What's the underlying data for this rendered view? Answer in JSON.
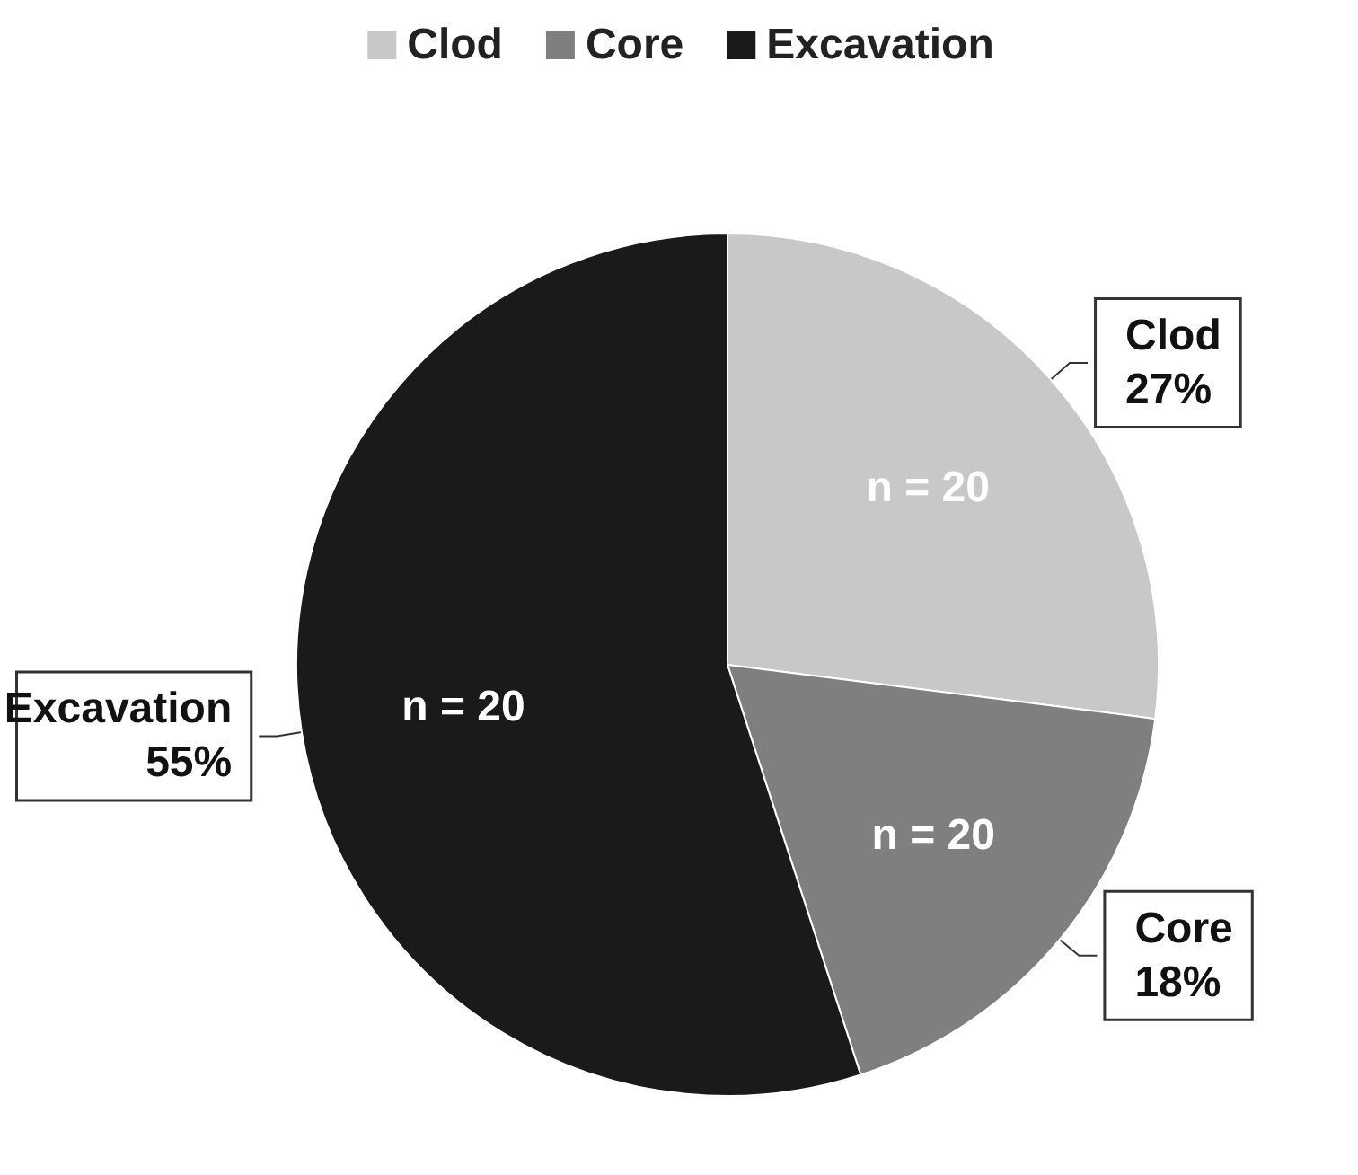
{
  "chart_data": {
    "type": "pie",
    "categories": [
      "Clod",
      "Core",
      "Excavation"
    ],
    "values": [
      27,
      18,
      55
    ],
    "value_labels": [
      "27%",
      "18%",
      "55%"
    ],
    "colors": [
      "#c8c8c8",
      "#7f7f7f",
      "#1a1a1a"
    ],
    "annotations": [
      "n = 20",
      "n = 20",
      "n = 20"
    ],
    "legend": "top"
  }
}
